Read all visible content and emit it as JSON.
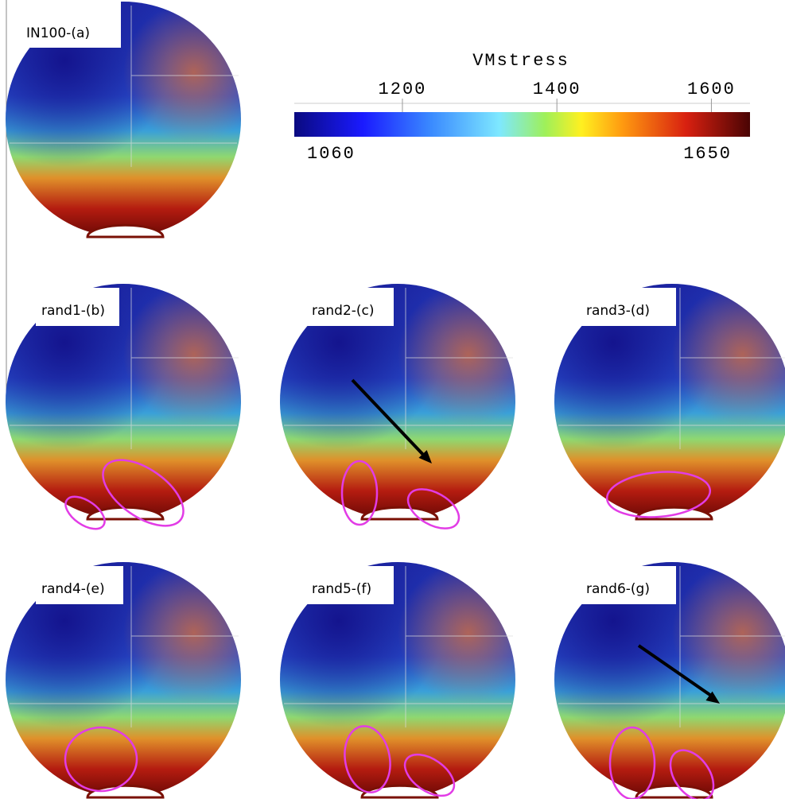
{
  "colorbar": {
    "title": "VMstress",
    "min": 1060,
    "max": 1650,
    "ticks": [
      1200,
      1400,
      1600
    ]
  },
  "panels": [
    {
      "label": "IN100-(a)"
    },
    {
      "label": "rand1-(b)"
    },
    {
      "label": "rand2-(c)"
    },
    {
      "label": "rand3-(d)"
    },
    {
      "label": "rand4-(e)"
    },
    {
      "label": "rand5-(f)"
    },
    {
      "label": "rand6-(g)"
    }
  ]
}
